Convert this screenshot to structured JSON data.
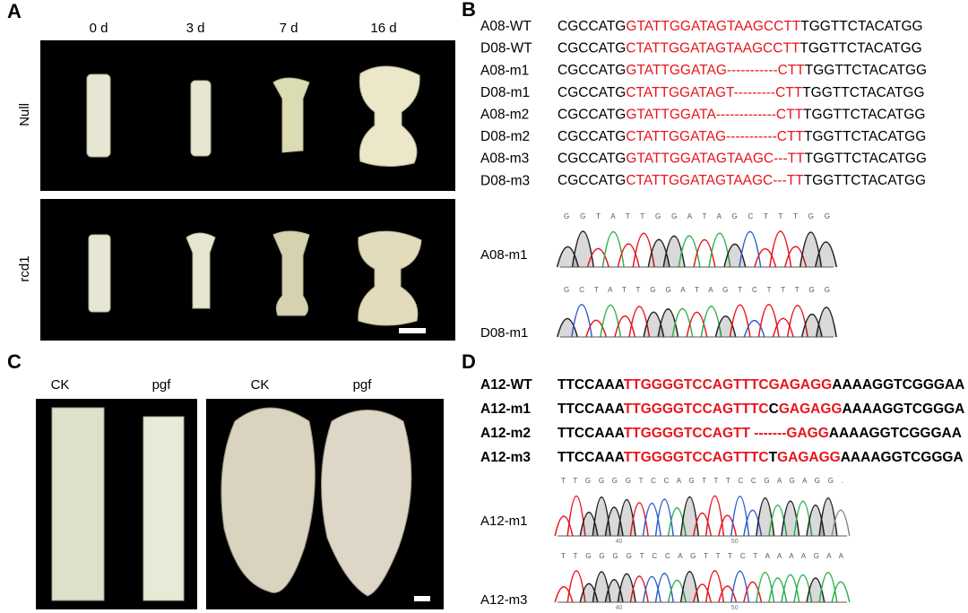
{
  "panel_a": {
    "letter": "A",
    "columns": [
      "0 d",
      "3 d",
      "7 d",
      "16 d"
    ],
    "rows": [
      "Null",
      "rcd1"
    ]
  },
  "panel_b": {
    "letter": "B",
    "alignment": [
      {
        "label": "A08-WT",
        "segments": [
          {
            "text": "CGCCATG",
            "color": "#000000"
          },
          {
            "text": "GTATTGGATAGTAAGCCTT",
            "color": "#e8141c"
          },
          {
            "text": "TGGTTCTACATGG",
            "color": "#000000"
          }
        ]
      },
      {
        "label": "D08-WT",
        "segments": [
          {
            "text": "CGCCATG",
            "color": "#000000"
          },
          {
            "text": "CTATTGGATAGTAAGCCTT",
            "color": "#e8141c"
          },
          {
            "text": "TGGTTCTACATGG",
            "color": "#000000"
          }
        ]
      },
      {
        "label": "A08-m1",
        "segments": [
          {
            "text": "CGCCATG",
            "color": "#000000"
          },
          {
            "text": "GTATTGGATAG-----------CTT",
            "color": "#e8141c"
          },
          {
            "text": "TGGTTCTACATGG",
            "color": "#000000"
          }
        ]
      },
      {
        "label": "D08-m1",
        "segments": [
          {
            "text": "CGCCATG",
            "color": "#000000"
          },
          {
            "text": "CTATTGGATAGT---------CTT",
            "color": "#e8141c"
          },
          {
            "text": "TGGTTCTACATGG",
            "color": "#000000"
          }
        ]
      },
      {
        "label": "A08-m2",
        "segments": [
          {
            "text": "CGCCATG",
            "color": "#000000"
          },
          {
            "text": "GTATTGGATA-------------CTT",
            "color": "#e8141c"
          },
          {
            "text": "TGGTTCTACATGG",
            "color": "#000000"
          }
        ]
      },
      {
        "label": "D08-m2",
        "segments": [
          {
            "text": "CGCCATG",
            "color": "#000000"
          },
          {
            "text": "CTATTGGATAG-----------CTT",
            "color": "#e8141c"
          },
          {
            "text": "TGGTTCTACATGG",
            "color": "#000000"
          }
        ]
      },
      {
        "label": "A08-m3",
        "segments": [
          {
            "text": "CGCCATG",
            "color": "#000000"
          },
          {
            "text": "GTATTGGATAGTAAGC---TT",
            "color": "#e8141c"
          },
          {
            "text": "TGGTTCTACATGG",
            "color": "#000000"
          }
        ]
      },
      {
        "label": "D08-m3",
        "segments": [
          {
            "text": "CGCCATG",
            "color": "#000000"
          },
          {
            "text": "CTATTGGATAGTAAGC---TT",
            "color": "#e8141c"
          },
          {
            "text": "TGGTTCTACATGG",
            "color": "#000000"
          }
        ]
      }
    ],
    "chromatograms": [
      {
        "label": "A08-m1",
        "bases": "G G T A T T G G A T A G C T T T G G"
      },
      {
        "label": "D08-m1",
        "bases": "G C T A T T G G A T A G T C T T T G G"
      }
    ]
  },
  "panel_c": {
    "letter": "C",
    "columns": [
      "CK",
      "pgf",
      "CK",
      "pgf"
    ]
  },
  "panel_d": {
    "letter": "D",
    "alignment": [
      {
        "label": "A12-WT",
        "segments": [
          {
            "text": "TTCCAAA",
            "color": "#000000"
          },
          {
            "text": "TTGGGGTCCAGTTTCGAGAGG",
            "color": "#e8141c"
          },
          {
            "text": "AAAAGGTCGGGAA",
            "color": "#000000"
          }
        ]
      },
      {
        "label": "A12-m1",
        "segments": [
          {
            "text": "TTCCAAA",
            "color": "#000000"
          },
          {
            "text": "TTGGGGTCCAGTTTC",
            "color": "#e8141c"
          },
          {
            "text": "C",
            "color": "#000000"
          },
          {
            "text": "GAGAGG",
            "color": "#e8141c"
          },
          {
            "text": "AAAAGGTCGGGA",
            "color": "#000000"
          }
        ]
      },
      {
        "label": "A12-m2",
        "segments": [
          {
            "text": "TTCCAAA",
            "color": "#000000"
          },
          {
            "text": "TTGGGGTCCAGTT -------GAGG",
            "color": "#e8141c"
          },
          {
            "text": "AAAAGGTCGGGAA",
            "color": "#000000"
          }
        ]
      },
      {
        "label": "A12-m3",
        "segments": [
          {
            "text": "TTCCAAA",
            "color": "#000000"
          },
          {
            "text": "TTGGGGTCCAGTTTC",
            "color": "#e8141c"
          },
          {
            "text": "T",
            "color": "#000000"
          },
          {
            "text": "GAGAGG",
            "color": "#e8141c"
          },
          {
            "text": "AAAAGGTCGGGA",
            "color": "#000000"
          }
        ]
      }
    ],
    "chromatograms": [
      {
        "label": "A12-m1",
        "bases": "T T G G G G T C C A G T T T C C G A G A G G .",
        "axis_labels": [
          "40",
          "50"
        ]
      },
      {
        "label": "A12-m3",
        "bases": "T T G G G G T C C A G T T T C T A A A A G A A",
        "axis_labels": [
          "40",
          "50"
        ]
      }
    ]
  }
}
